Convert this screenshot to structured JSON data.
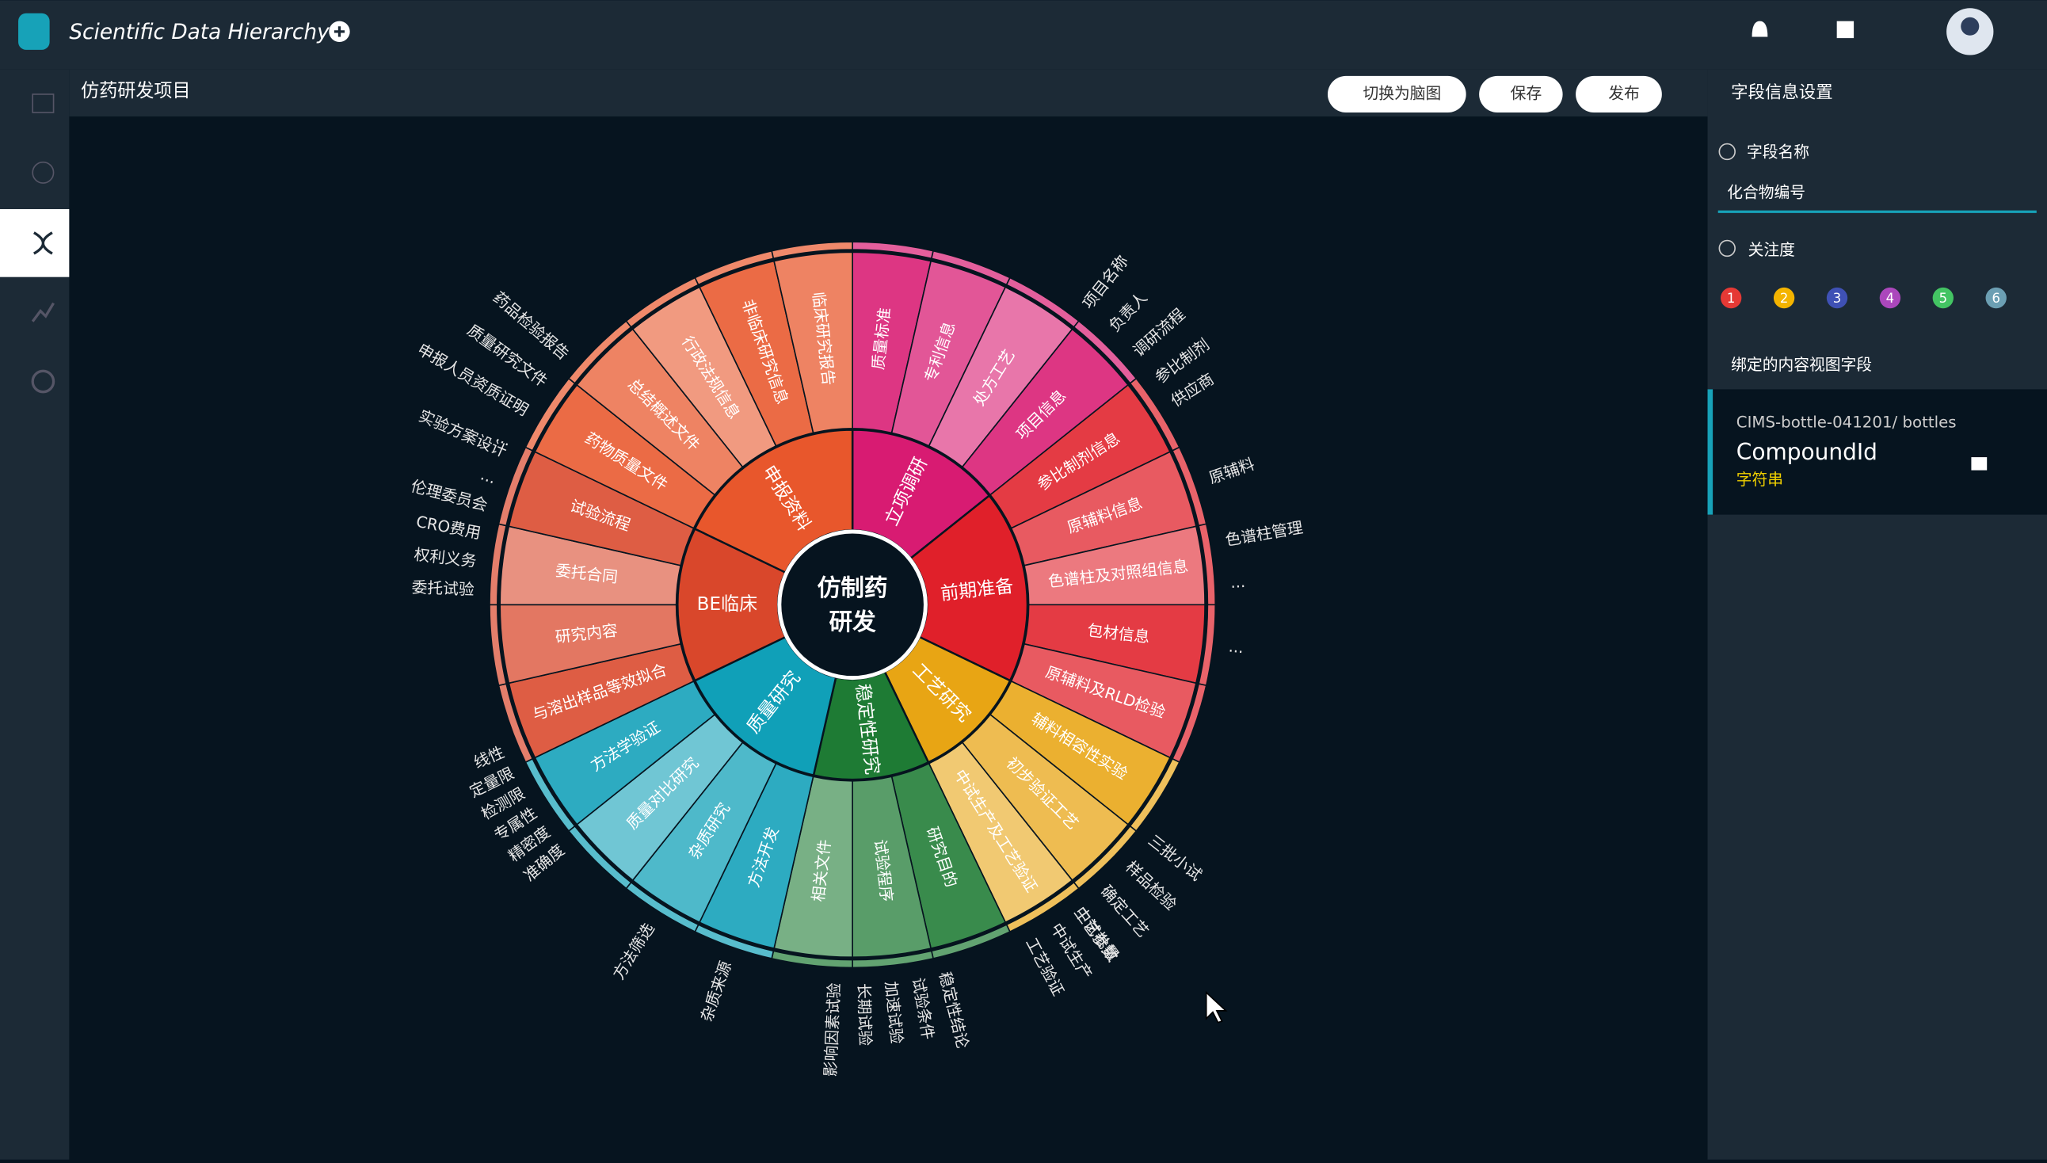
{
  "header": {
    "title": "Scientific Data Hierarchy"
  },
  "toolbar": {
    "project": "仿药研发项目",
    "buttons": [
      "切换为脑图",
      "保存",
      "发布"
    ]
  },
  "panel": {
    "title": "字段信息设置",
    "field_name_label": "字段名称",
    "field_name_value": "化合物编号",
    "attention_label": "关注度",
    "levels": [
      "1",
      "2",
      "3",
      "4",
      "5",
      "6"
    ],
    "bound_label": "绑定的内容视图字段",
    "bound": {
      "path": "CIMS-bottle-041201/ bottles",
      "field": "CompoundId",
      "type": "字符串"
    }
  },
  "sunburst": {
    "center": [
      "仿制药",
      "研发"
    ],
    "groups": [
      {
        "label": "立项调研",
        "color": "#d81b72",
        "children": [
          {
            "label": "质量标准",
            "children": []
          },
          {
            "label": "专利信息",
            "children": []
          },
          {
            "label": "处方工艺",
            "children": []
          },
          {
            "label": "项目信息",
            "children": [
              "项目名称",
              "负责人",
              "调研流程",
              "参比制剂"
            ]
          }
        ]
      },
      {
        "label": "前期准备",
        "color": "#e0202a",
        "children": [
          {
            "label": "参比制剂信息",
            "children": [
              "供应商"
            ]
          },
          {
            "label": "原辅料信息",
            "children": [
              "原辅料"
            ]
          },
          {
            "label": "色谱柱及对照组信息",
            "children": [
              "色谱柱管理",
              "..."
            ]
          },
          {
            "label": "包材信息",
            "children": [
              "..."
            ]
          },
          {
            "label": "原辅料及RLD检验",
            "children": []
          }
        ]
      },
      {
        "label": "工艺研究",
        "color": "#e8a514",
        "children": [
          {
            "label": "辅料相容性实验",
            "children": []
          },
          {
            "label": "初步验证工艺",
            "children": [
              "三批小试",
              "样品检验",
              "确定工艺",
              "工艺参数"
            ]
          },
          {
            "label": "中试生产及工艺验证",
            "children": [
              "中试批量",
              "中试生产",
              "工艺验证"
            ]
          }
        ]
      },
      {
        "label": "稳定性研究",
        "color": "#1e7b34",
        "children": [
          {
            "label": "研究目的",
            "children": []
          },
          {
            "label": "试验程序",
            "children": [
              "稳定性结论",
              "试验条件",
              "加速试验",
              "长期试验",
              "影响因素试验"
            ]
          },
          {
            "label": "相关文件",
            "children": []
          }
        ]
      },
      {
        "label": "质量研究",
        "color": "#10a0b8",
        "children": [
          {
            "label": "方法开发",
            "children": [
              "杂质来源"
            ]
          },
          {
            "label": "杂质研究",
            "children": [
              "方法筛选"
            ]
          },
          {
            "label": "质量对比研究",
            "children": []
          },
          {
            "label": "方法学验证",
            "children": [
              "准确度",
              "精密度",
              "专属性",
              "检测限",
              "定量限",
              "线性"
            ]
          }
        ]
      },
      {
        "label": "BE临床",
        "color": "#d9472b",
        "children": [
          {
            "label": "与溶出样品等效拟合",
            "children": []
          },
          {
            "label": "研究内容",
            "children": []
          },
          {
            "label": "委托合同",
            "children": [
              "委托试验",
              "权利义务",
              "CRO费用"
            ]
          },
          {
            "label": "试验流程",
            "children": [
              "伦理委员会",
              "...",
              "实验方案设计"
            ]
          }
        ]
      },
      {
        "label": "申报资料",
        "color": "#e8572c",
        "children": [
          {
            "label": "药物质量文件",
            "children": [
              "...",
              "申报人员资质证明",
              "质量研究文件",
              "药品检验报告"
            ]
          },
          {
            "label": "总结概述文件",
            "children": []
          },
          {
            "label": "行政法规信息",
            "children": []
          },
          {
            "label": "非临床研究信息",
            "children": []
          },
          {
            "label": "临床研究报告",
            "children": []
          }
        ]
      }
    ]
  }
}
